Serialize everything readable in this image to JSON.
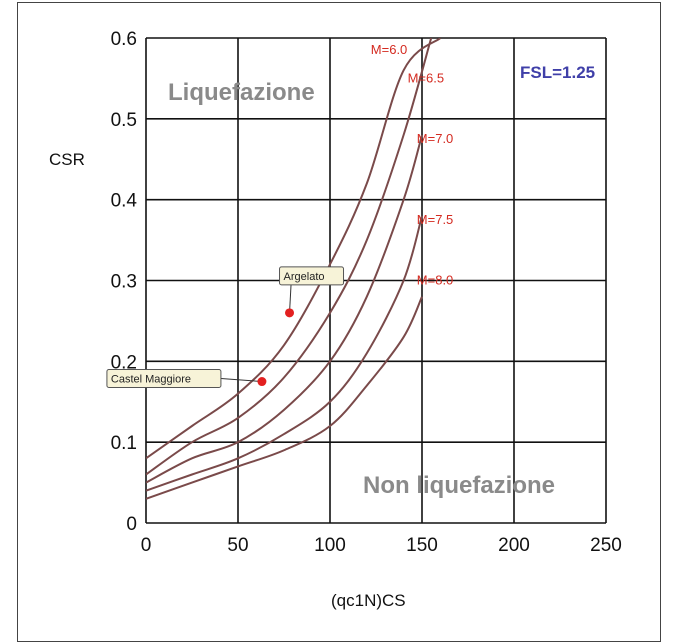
{
  "chart_data": {
    "type": "line",
    "xlabel": "(qc1N)CS",
    "ylabel": "CSR",
    "xlim": [
      0,
      250
    ],
    "ylim": [
      0,
      0.6
    ],
    "x_ticks": [
      "0",
      "50",
      "100",
      "150",
      "200",
      "250"
    ],
    "y_ticks": [
      "0",
      "0.1",
      "0.2",
      "0.3",
      "0.4",
      "0.5",
      "0.6"
    ],
    "grid": true,
    "series": [
      {
        "name": "M=6.0",
        "x": [
          0,
          25,
          50,
          75,
          100,
          120,
          140,
          160
        ],
        "y": [
          0.08,
          0.12,
          0.16,
          0.22,
          0.32,
          0.42,
          0.56,
          0.6
        ]
      },
      {
        "name": "M=6.5",
        "x": [
          0,
          25,
          50,
          75,
          100,
          120,
          140,
          155
        ],
        "y": [
          0.06,
          0.1,
          0.13,
          0.18,
          0.26,
          0.35,
          0.48,
          0.6
        ]
      },
      {
        "name": "M=7.0",
        "x": [
          0,
          25,
          50,
          75,
          100,
          120,
          140,
          150
        ],
        "y": [
          0.05,
          0.08,
          0.1,
          0.14,
          0.2,
          0.28,
          0.4,
          0.48
        ]
      },
      {
        "name": "M=7.5",
        "x": [
          0,
          25,
          50,
          75,
          100,
          120,
          140,
          150
        ],
        "y": [
          0.04,
          0.06,
          0.08,
          0.11,
          0.15,
          0.21,
          0.3,
          0.38
        ]
      },
      {
        "name": "M=8.0",
        "x": [
          0,
          25,
          50,
          75,
          100,
          120,
          140,
          150
        ],
        "y": [
          0.03,
          0.05,
          0.07,
          0.09,
          0.12,
          0.17,
          0.23,
          0.28
        ]
      }
    ],
    "points": [
      {
        "label": "Argelato",
        "x": 78,
        "y": 0.26
      },
      {
        "label": "Castel Maggiore",
        "x": 63,
        "y": 0.175
      }
    ],
    "annotations": {
      "liquefaction": "Liquefazione",
      "non_liquefaction": "Non liquefazione",
      "fsl": "FSL=1.25"
    }
  },
  "colors": {
    "curve": "#7a4a4a",
    "curve_label": "#d42a20",
    "point": "#e32020",
    "region_label": "#8a8a8a",
    "fsl": "#3f3fa8",
    "grid": "#111111"
  }
}
